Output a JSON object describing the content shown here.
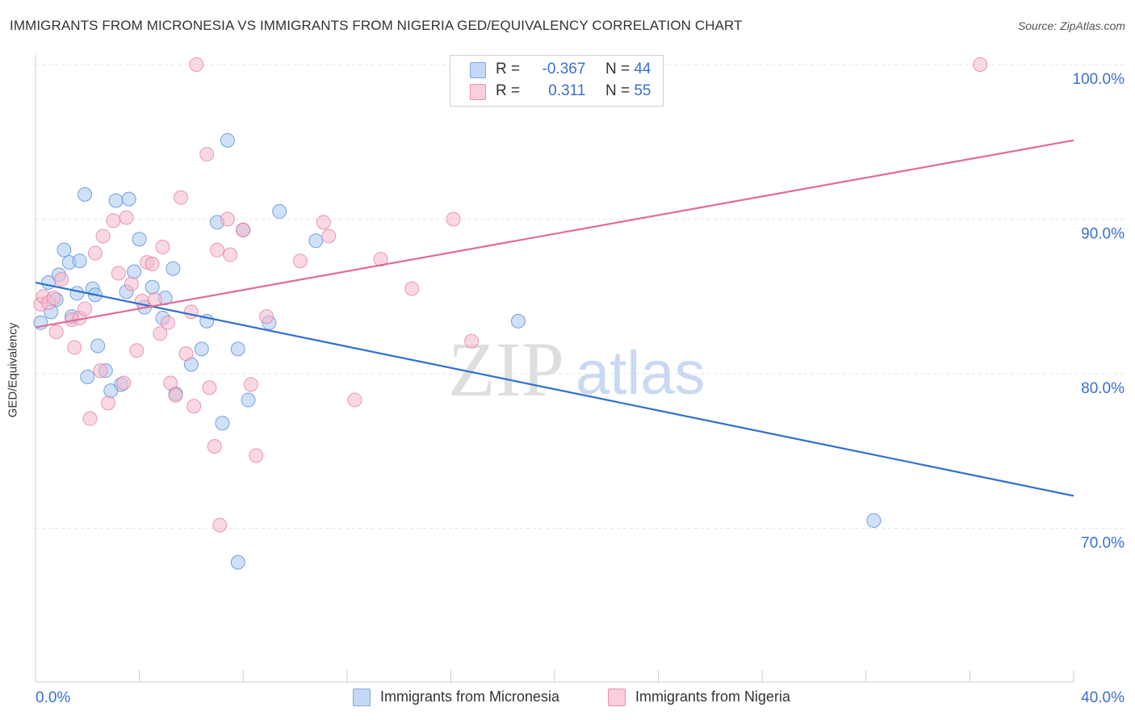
{
  "title": "IMMIGRANTS FROM MICRONESIA VS IMMIGRANTS FROM NIGERIA GED/EQUIVALENCY CORRELATION CHART",
  "source": "Source: ZipAtlas.com",
  "legend": {
    "rows": [
      {
        "r_label": "R =",
        "r_value": "-0.367",
        "n_label": "N =",
        "n_value": "44",
        "color": "#aac8f0"
      },
      {
        "r_label": "R =",
        "r_value": "0.311",
        "n_label": "N =",
        "n_value": "55",
        "color": "#f5b8cc"
      }
    ]
  },
  "bottom_legend": [
    {
      "label": "Immigrants from Micronesia",
      "color": "#aac8f0"
    },
    {
      "label": "Immigrants from Nigeria",
      "color": "#f5b8cc"
    }
  ],
  "watermark": {
    "zip": "ZIP",
    "atlas": "atlas"
  },
  "chart_data": {
    "type": "scatter",
    "title": "IMMIGRANTS FROM MICRONESIA VS IMMIGRANTS FROM NIGERIA GED/EQUIVALENCY CORRELATION CHART",
    "xlabel": "",
    "ylabel": "GED/Equivalency",
    "xlim": [
      0,
      40
    ],
    "ylim": [
      60,
      101
    ],
    "x_tick_labels": [
      {
        "value": 0,
        "label": "0.0%"
      },
      {
        "value": 40,
        "label": "40.0%"
      }
    ],
    "y_tick_labels": [
      {
        "value": 100,
        "label": "100.0%"
      },
      {
        "value": 90,
        "label": "90.0%"
      },
      {
        "value": 80,
        "label": "80.0%"
      },
      {
        "value": 70,
        "label": "70.0%"
      }
    ],
    "grid": true,
    "legend_position": "top-center",
    "series": [
      {
        "name": "Immigrants from Micronesia",
        "color": "#4a86d8",
        "fill": "#aac8f0",
        "trend": {
          "x": [
            0,
            40
          ],
          "y": [
            85.9,
            72.1
          ],
          "color": "#2f6fd0"
        },
        "points": [
          [
            0.2,
            83.3
          ],
          [
            0.5,
            85.9
          ],
          [
            0.6,
            84.0
          ],
          [
            0.8,
            84.8
          ],
          [
            0.9,
            86.4
          ],
          [
            1.1,
            88.0
          ],
          [
            1.3,
            87.2
          ],
          [
            1.7,
            87.3
          ],
          [
            1.6,
            85.2
          ],
          [
            1.4,
            83.7
          ],
          [
            1.9,
            91.6
          ],
          [
            2.2,
            85.5
          ],
          [
            2.3,
            85.1
          ],
          [
            2.4,
            81.8
          ],
          [
            2.7,
            80.2
          ],
          [
            2.0,
            79.8
          ],
          [
            3.1,
            91.2
          ],
          [
            3.6,
            91.3
          ],
          [
            3.5,
            85.3
          ],
          [
            3.8,
            86.6
          ],
          [
            4.0,
            88.7
          ],
          [
            4.2,
            84.3
          ],
          [
            4.5,
            85.6
          ],
          [
            4.9,
            83.6
          ],
          [
            5.3,
            86.8
          ],
          [
            5.4,
            78.7
          ],
          [
            6.0,
            80.6
          ],
          [
            6.4,
            81.6
          ],
          [
            6.6,
            83.4
          ],
          [
            7.0,
            89.8
          ],
          [
            7.4,
            95.1
          ],
          [
            7.2,
            76.8
          ],
          [
            7.8,
            81.6
          ],
          [
            8.2,
            78.3
          ],
          [
            8.0,
            89.3
          ],
          [
            9.0,
            83.3
          ],
          [
            9.4,
            90.5
          ],
          [
            10.8,
            88.6
          ],
          [
            18.6,
            83.4
          ],
          [
            32.3,
            70.5
          ],
          [
            7.8,
            67.8
          ],
          [
            3.3,
            79.3
          ],
          [
            2.9,
            78.9
          ],
          [
            5.0,
            84.9
          ]
        ]
      },
      {
        "name": "Immigrants from Nigeria",
        "color": "#e27a9e",
        "fill": "#f5b8cc",
        "trend": {
          "x": [
            0,
            40
          ],
          "y": [
            83.0,
            95.1
          ],
          "color": "#e06c97"
        },
        "points": [
          [
            0.2,
            84.5
          ],
          [
            0.3,
            85.0
          ],
          [
            0.5,
            84.6
          ],
          [
            0.7,
            84.9
          ],
          [
            0.8,
            82.7
          ],
          [
            1.0,
            86.1
          ],
          [
            1.4,
            83.5
          ],
          [
            1.5,
            81.7
          ],
          [
            1.7,
            83.6
          ],
          [
            1.9,
            84.2
          ],
          [
            2.1,
            77.1
          ],
          [
            2.3,
            87.8
          ],
          [
            2.5,
            80.2
          ],
          [
            2.6,
            88.9
          ],
          [
            2.8,
            78.1
          ],
          [
            3.0,
            89.9
          ],
          [
            3.2,
            86.5
          ],
          [
            3.4,
            79.4
          ],
          [
            3.5,
            90.1
          ],
          [
            3.7,
            85.8
          ],
          [
            3.9,
            81.5
          ],
          [
            4.1,
            84.7
          ],
          [
            4.3,
            87.2
          ],
          [
            4.5,
            87.1
          ],
          [
            4.6,
            84.8
          ],
          [
            4.9,
            88.2
          ],
          [
            5.1,
            83.3
          ],
          [
            5.2,
            79.4
          ],
          [
            5.4,
            78.6
          ],
          [
            5.6,
            91.4
          ],
          [
            5.8,
            81.3
          ],
          [
            6.0,
            84.0
          ],
          [
            6.2,
            100.0
          ],
          [
            6.1,
            77.9
          ],
          [
            6.6,
            94.2
          ],
          [
            6.7,
            79.1
          ],
          [
            6.9,
            75.3
          ],
          [
            7.0,
            88.0
          ],
          [
            7.1,
            70.2
          ],
          [
            7.4,
            90.0
          ],
          [
            7.5,
            87.7
          ],
          [
            8.0,
            89.3
          ],
          [
            8.3,
            79.3
          ],
          [
            8.5,
            74.7
          ],
          [
            8.9,
            83.7
          ],
          [
            10.2,
            87.3
          ],
          [
            11.1,
            89.8
          ],
          [
            11.3,
            88.9
          ],
          [
            12.3,
            78.3
          ],
          [
            13.3,
            87.4
          ],
          [
            14.5,
            85.5
          ],
          [
            16.1,
            90.0
          ],
          [
            16.8,
            82.1
          ],
          [
            36.4,
            100.0
          ],
          [
            4.8,
            82.6
          ]
        ]
      }
    ]
  }
}
